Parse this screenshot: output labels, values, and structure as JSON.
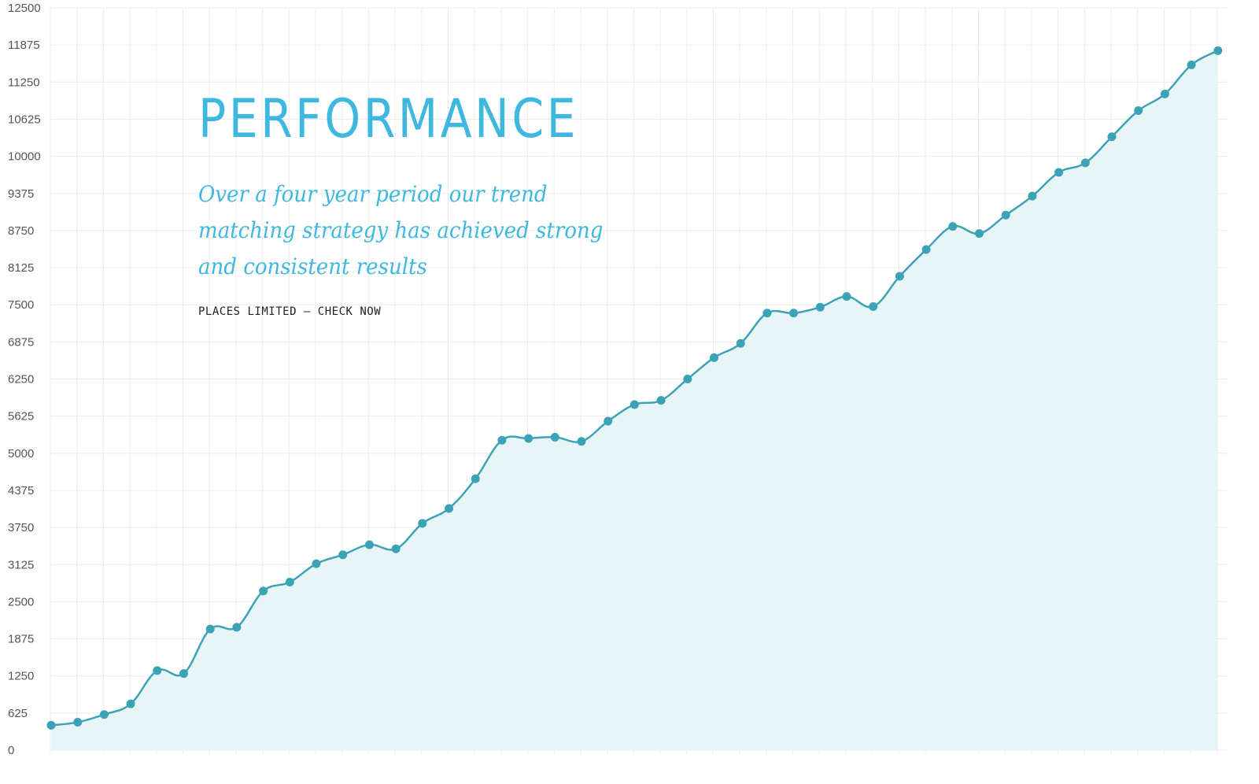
{
  "page": {
    "title": "PERFORMANCE",
    "subtitle": "Over a four year period our trend matching strategy has achieved strong and consistent results",
    "cta": "PLACES LIMITED – CHECK NOW"
  },
  "colors": {
    "accent": "#3fb8df",
    "line": "#3ca3b7",
    "point": "#3ca3b7",
    "area_fill": "#e8f5f7",
    "grid": "#ececec",
    "tick_text": "#555555"
  },
  "chart_data": {
    "type": "area",
    "title": "",
    "xlabel": "",
    "ylabel": "",
    "ylim": [
      0,
      12500
    ],
    "yticks": [
      0,
      625,
      1250,
      1875,
      2500,
      3125,
      3750,
      4375,
      5000,
      5625,
      6250,
      6875,
      7500,
      8125,
      8750,
      9375,
      10000,
      10625,
      11250,
      11875,
      12500
    ],
    "grid": true,
    "legend": "none",
    "series": [
      {
        "values": [
          420,
          470,
          600,
          780,
          1340,
          1290,
          2040,
          2070,
          2680,
          2830,
          3140,
          3290,
          3460,
          3390,
          3820,
          4070,
          4570,
          5220,
          5250,
          5270,
          5200,
          5540,
          5820,
          5890,
          6250,
          6610,
          6850,
          7360,
          7360,
          7460,
          7640,
          7470,
          7980,
          8430,
          8820,
          8700,
          9010,
          9330,
          9730,
          9890,
          10330,
          10770,
          11050,
          11540,
          11780
        ]
      }
    ]
  }
}
